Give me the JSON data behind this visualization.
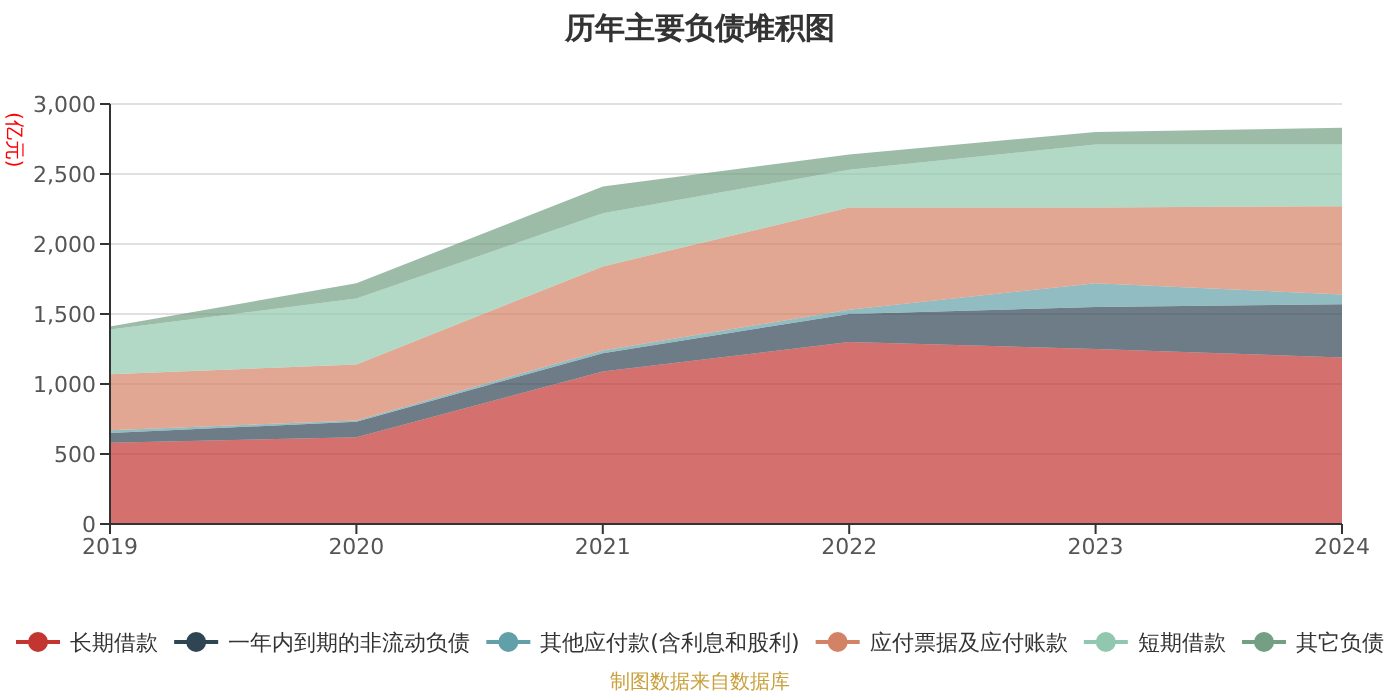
{
  "chart_data": {
    "type": "area",
    "title": "历年主要负债堆积图",
    "ylabel": "(亿元)",
    "categories": [
      "2019",
      "2020",
      "2021",
      "2022",
      "2023",
      "2024"
    ],
    "stacked": true,
    "ylim": [
      0,
      3000
    ],
    "yticks": [
      0,
      500,
      {
        "value": 1000,
        "label": "1,000"
      },
      {
        "value": 1500,
        "label": "1,500"
      },
      {
        "value": 2000,
        "label": "2,000"
      },
      {
        "value": 2500,
        "label": "2,500"
      },
      {
        "value": 3000,
        "label": "3,000"
      }
    ],
    "grid": "y",
    "legend": "bottom",
    "annotations": [
      "制图数据来自数据库"
    ],
    "series": [
      {
        "name": "长期借款",
        "color": "#c23531",
        "values": [
          580,
          620,
          1090,
          1300,
          1250,
          1190
        ]
      },
      {
        "name": "一年内到期的非流动负债",
        "color": "#2f4554",
        "values": [
          70,
          110,
          130,
          200,
          300,
          380
        ]
      },
      {
        "name": "其他应付款(含利息和股利)",
        "color": "#61a0a8",
        "values": [
          20,
          10,
          20,
          30,
          170,
          70
        ]
      },
      {
        "name": "应付票据及应付账款",
        "color": "#d48265",
        "values": [
          400,
          400,
          600,
          730,
          540,
          630
        ]
      },
      {
        "name": "短期借款",
        "color": "#91c7ae",
        "values": [
          320,
          470,
          380,
          270,
          450,
          440
        ]
      },
      {
        "name": "其它负债",
        "color": "#749f83",
        "values": [
          20,
          110,
          190,
          110,
          90,
          120
        ]
      }
    ]
  }
}
